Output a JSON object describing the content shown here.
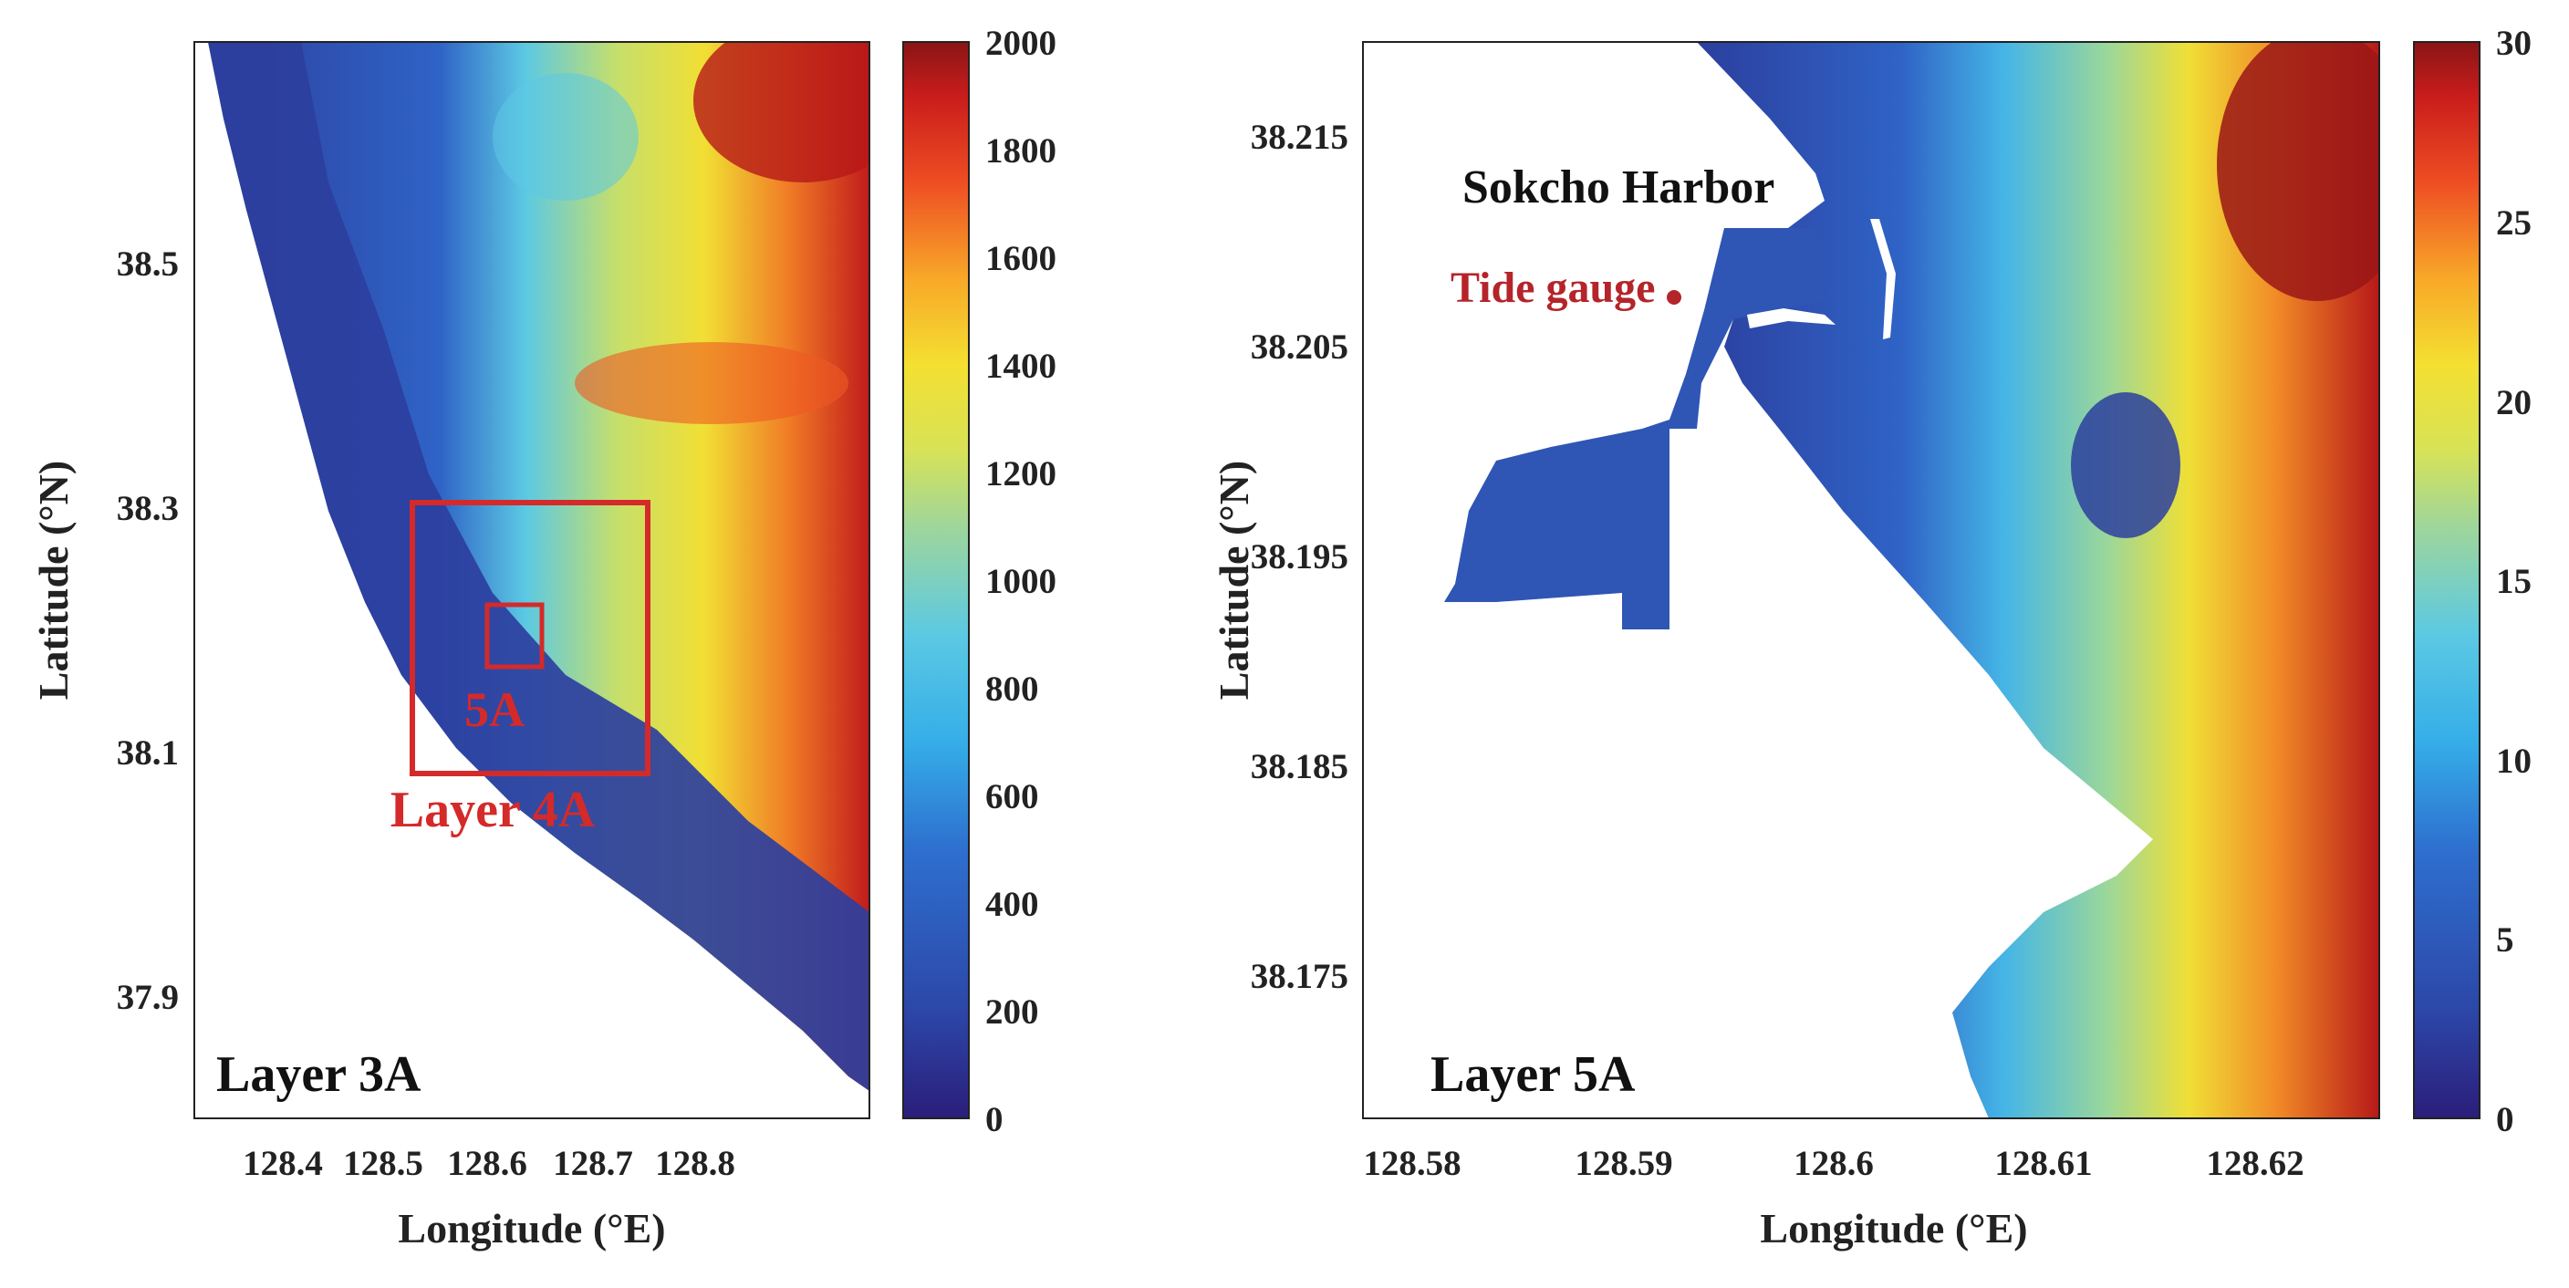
{
  "colors": {
    "scale": [
      "#2b1d7a",
      "#2c47a8",
      "#2e6fcf",
      "#35aee8",
      "#5cc9e3",
      "#9fd69a",
      "#d7e257",
      "#f4e031",
      "#f8a828",
      "#ee4d23",
      "#c91c1c",
      "#8a1515"
    ],
    "land": "#ffffff",
    "annotation_red": "#d42a2a",
    "tide_gauge": "#b5242a"
  },
  "panels": [
    {
      "panel_label": "Layer 3A",
      "xlabel": "Longitude (°E)",
      "ylabel": "Latitude (°N)",
      "xticks": [
        "128.4",
        "128.5",
        "128.6",
        "128.7",
        "128.8"
      ],
      "yticks": [
        "38.5",
        "38.3",
        "38.1",
        "37.9"
      ],
      "colorbar_ticks": [
        "2000",
        "1800",
        "1600",
        "1400",
        "1200",
        "1000",
        "800",
        "600",
        "400",
        "200",
        "0"
      ],
      "annotations": {
        "box_large": "Layer 4A",
        "box_small": "5A"
      }
    },
    {
      "panel_label": "Layer 5A",
      "xlabel": "Longitude (°E)",
      "ylabel": "Latitude (°N)",
      "xticks": [
        "128.58",
        "128.59",
        "128.6",
        "128.61",
        "128.62"
      ],
      "yticks": [
        "38.215",
        "38.205",
        "38.195",
        "38.185",
        "38.175"
      ],
      "colorbar_ticks": [
        "30",
        "25",
        "20",
        "15",
        "10",
        "5",
        "0"
      ],
      "annotations": {
        "harbor": "Sokcho Harbor",
        "tide_gauge": "Tide gauge"
      }
    }
  ]
}
